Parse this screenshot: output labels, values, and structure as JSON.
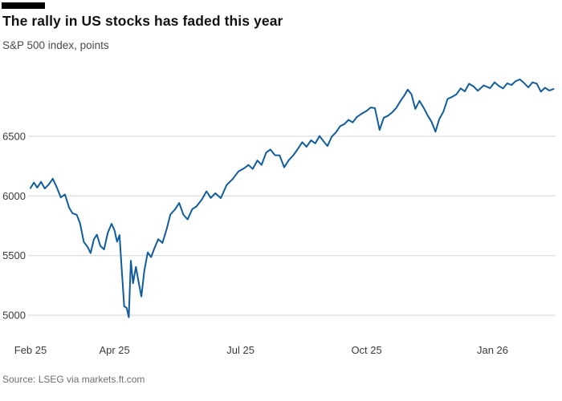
{
  "header": {
    "title": "The rally in US stocks has faded this year",
    "subtitle": "S&P 500 index, points"
  },
  "footer": {
    "source": "Source: LSEG via markets.ft.com"
  },
  "colors": {
    "line": "#115c9d",
    "grid": "#d5d5d5",
    "tick_text": "#3a3a3a",
    "title_text": "#121212",
    "subtitle_text": "#494949",
    "source_text": "#6e6e6e",
    "flag": "#000000",
    "background": "#ffffff"
  },
  "chart_data": {
    "type": "line",
    "title": "The rally in US stocks has faded this year",
    "subtitle": "S&P 500 index, points",
    "x_unit": "months since Feb 2025",
    "xlim": [
      0,
      12.5
    ],
    "ylim": [
      4900,
      7050
    ],
    "yticks": [
      5000,
      5500,
      6000,
      6500
    ],
    "xticks": [
      {
        "pos": 0,
        "label": "Feb 25"
      },
      {
        "pos": 2,
        "label": "Apr 25"
      },
      {
        "pos": 5,
        "label": "Jul 25"
      },
      {
        "pos": 8,
        "label": "Oct 25"
      },
      {
        "pos": 11,
        "label": "Jan 26"
      }
    ],
    "grid": "horizontal",
    "legend": "none",
    "series": [
      {
        "name": "S&P 500 index",
        "color": "#115c9d",
        "points": [
          [
            0,
            6065
          ],
          [
            0.08,
            6112
          ],
          [
            0.16,
            6070
          ],
          [
            0.25,
            6118
          ],
          [
            0.34,
            6062
          ],
          [
            0.44,
            6098
          ],
          [
            0.53,
            6144
          ],
          [
            0.63,
            6068
          ],
          [
            0.72,
            5988
          ],
          [
            0.82,
            6012
          ],
          [
            0.92,
            5902
          ],
          [
            1.0,
            5855
          ],
          [
            1.1,
            5842
          ],
          [
            1.18,
            5770
          ],
          [
            1.27,
            5614
          ],
          [
            1.36,
            5572
          ],
          [
            1.43,
            5521
          ],
          [
            1.51,
            5638
          ],
          [
            1.58,
            5675
          ],
          [
            1.66,
            5582
          ],
          [
            1.75,
            5552
          ],
          [
            1.84,
            5692
          ],
          [
            1.93,
            5767
          ],
          [
            2.0,
            5712
          ],
          [
            2.06,
            5616
          ],
          [
            2.12,
            5671
          ],
          [
            2.17,
            5396
          ],
          [
            2.23,
            5075
          ],
          [
            2.29,
            5062
          ],
          [
            2.34,
            4983
          ],
          [
            2.39,
            5457
          ],
          [
            2.44,
            5268
          ],
          [
            2.51,
            5406
          ],
          [
            2.57,
            5282
          ],
          [
            2.64,
            5158
          ],
          [
            2.71,
            5376
          ],
          [
            2.79,
            5527
          ],
          [
            2.87,
            5487
          ],
          [
            2.95,
            5561
          ],
          [
            3.04,
            5637
          ],
          [
            3.14,
            5606
          ],
          [
            3.24,
            5720
          ],
          [
            3.33,
            5844
          ],
          [
            3.44,
            5887
          ],
          [
            3.54,
            5941
          ],
          [
            3.64,
            5843
          ],
          [
            3.74,
            5803
          ],
          [
            3.85,
            5889
          ],
          [
            3.95,
            5912
          ],
          [
            4.08,
            5971
          ],
          [
            4.19,
            6039
          ],
          [
            4.29,
            5983
          ],
          [
            4.4,
            6023
          ],
          [
            4.53,
            5981
          ],
          [
            4.67,
            6092
          ],
          [
            4.81,
            6141
          ],
          [
            4.95,
            6205
          ],
          [
            5.08,
            6230
          ],
          [
            5.19,
            6259
          ],
          [
            5.29,
            6226
          ],
          [
            5.4,
            6297
          ],
          [
            5.5,
            6260
          ],
          [
            5.61,
            6363
          ],
          [
            5.71,
            6389
          ],
          [
            5.82,
            6341
          ],
          [
            5.93,
            6339
          ],
          [
            6.04,
            6240
          ],
          [
            6.15,
            6300
          ],
          [
            6.26,
            6341
          ],
          [
            6.37,
            6397
          ],
          [
            6.47,
            6450
          ],
          [
            6.57,
            6412
          ],
          [
            6.68,
            6466
          ],
          [
            6.78,
            6440
          ],
          [
            6.88,
            6502
          ],
          [
            6.97,
            6461
          ],
          [
            7.07,
            6418
          ],
          [
            7.17,
            6496
          ],
          [
            7.27,
            6532
          ],
          [
            7.37,
            6584
          ],
          [
            7.47,
            6601
          ],
          [
            7.57,
            6637
          ],
          [
            7.67,
            6616
          ],
          [
            7.77,
            6661
          ],
          [
            7.88,
            6688
          ],
          [
            8.0,
            6712
          ],
          [
            8.1,
            6741
          ],
          [
            8.2,
            6735
          ],
          [
            8.31,
            6553
          ],
          [
            8.41,
            6655
          ],
          [
            8.51,
            6672
          ],
          [
            8.61,
            6700
          ],
          [
            8.71,
            6738
          ],
          [
            8.81,
            6796
          ],
          [
            8.9,
            6841
          ],
          [
            8.98,
            6890
          ],
          [
            9.07,
            6852
          ],
          [
            9.16,
            6729
          ],
          [
            9.26,
            6796
          ],
          [
            9.36,
            6738
          ],
          [
            9.46,
            6672
          ],
          [
            9.55,
            6618
          ],
          [
            9.64,
            6538
          ],
          [
            9.73,
            6643
          ],
          [
            9.83,
            6706
          ],
          [
            9.93,
            6812
          ],
          [
            10.04,
            6830
          ],
          [
            10.14,
            6851
          ],
          [
            10.24,
            6901
          ],
          [
            10.34,
            6876
          ],
          [
            10.44,
            6940
          ],
          [
            10.55,
            6916
          ],
          [
            10.65,
            6881
          ],
          [
            10.79,
            6926
          ],
          [
            10.94,
            6903
          ],
          [
            11.05,
            6952
          ],
          [
            11.15,
            6921
          ],
          [
            11.25,
            6901
          ],
          [
            11.35,
            6943
          ],
          [
            11.45,
            6929
          ],
          [
            11.55,
            6961
          ],
          [
            11.65,
            6976
          ],
          [
            11.75,
            6946
          ],
          [
            11.85,
            6909
          ],
          [
            11.95,
            6951
          ],
          [
            12.05,
            6941
          ],
          [
            12.15,
            6873
          ],
          [
            12.25,
            6906
          ],
          [
            12.35,
            6883
          ],
          [
            12.45,
            6896
          ]
        ]
      }
    ]
  }
}
